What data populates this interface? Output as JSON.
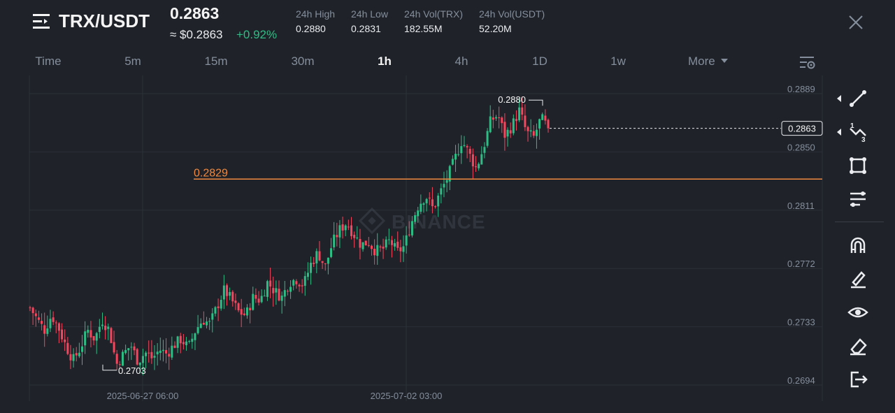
{
  "header": {
    "pair": "TRX/USDT",
    "last_price": "0.2863",
    "approx_price": "≈ $0.2863",
    "change_pct": "+0.92%",
    "stats": [
      {
        "label": "24h High",
        "value": "0.2880"
      },
      {
        "label": "24h Low",
        "value": "0.2831"
      },
      {
        "label": "24h Vol(TRX)",
        "value": "182.55M"
      },
      {
        "label": "24h Vol(USDT)",
        "value": "52.20M"
      }
    ]
  },
  "tabs": [
    "Time",
    "5m",
    "15m",
    "30m",
    "1h",
    "4h",
    "1D",
    "1w"
  ],
  "active_tab": "1h",
  "more_label": "More",
  "chart_data": {
    "type": "candlestick",
    "y_ticks": [
      "0.2889",
      "0.2850",
      "0.2811",
      "0.2772",
      "0.2733",
      "0.2694"
    ],
    "x_ticks": [
      "2025-06-27 06:00",
      "2025-07-02 03:00"
    ],
    "ylim": [
      0.2694,
      0.2889
    ],
    "current_price_label": "0.2863",
    "horizontal_line": {
      "value": 0.2829,
      "label": "0.2829",
      "color": "#f0883e"
    },
    "max_marker": {
      "value": 0.288,
      "label": "0.2880"
    },
    "min_marker": {
      "value": 0.2703,
      "label": "0.2703"
    },
    "watermark": "BINANCE",
    "close_path": [
      0.2743,
      0.2735,
      0.2728,
      0.2738,
      0.2729,
      0.2717,
      0.2708,
      0.2716,
      0.2728,
      0.2722,
      0.2735,
      0.2728,
      0.2705,
      0.2712,
      0.2718,
      0.2707,
      0.2713,
      0.2709,
      0.2715,
      0.2712,
      0.2718,
      0.2722,
      0.2716,
      0.2728,
      0.2735,
      0.2732,
      0.2744,
      0.2755,
      0.2748,
      0.274,
      0.2738,
      0.275,
      0.2748,
      0.276,
      0.2754,
      0.275,
      0.276,
      0.2762,
      0.2758,
      0.2772,
      0.278,
      0.277,
      0.2786,
      0.2795,
      0.28,
      0.2792,
      0.2785,
      0.2787,
      0.2781,
      0.2782,
      0.2788,
      0.278,
      0.2784,
      0.28,
      0.2812,
      0.2818,
      0.2809,
      0.282,
      0.283,
      0.2842,
      0.2855,
      0.2846,
      0.2836,
      0.285,
      0.2868,
      0.2872,
      0.2858,
      0.2865,
      0.2875,
      0.286,
      0.2857,
      0.287,
      0.2863
    ],
    "candle_count": 180,
    "up_color": "#2ebd85",
    "down_color": "#f6465d"
  },
  "toolbar": [
    "trend-line-icon",
    "fibonacci-icon",
    "rectangle-shape-icon",
    "indicators-icon",
    "magnet-icon",
    "brush-icon",
    "visibility-eye-icon",
    "eraser-icon",
    "exit-icon"
  ]
}
